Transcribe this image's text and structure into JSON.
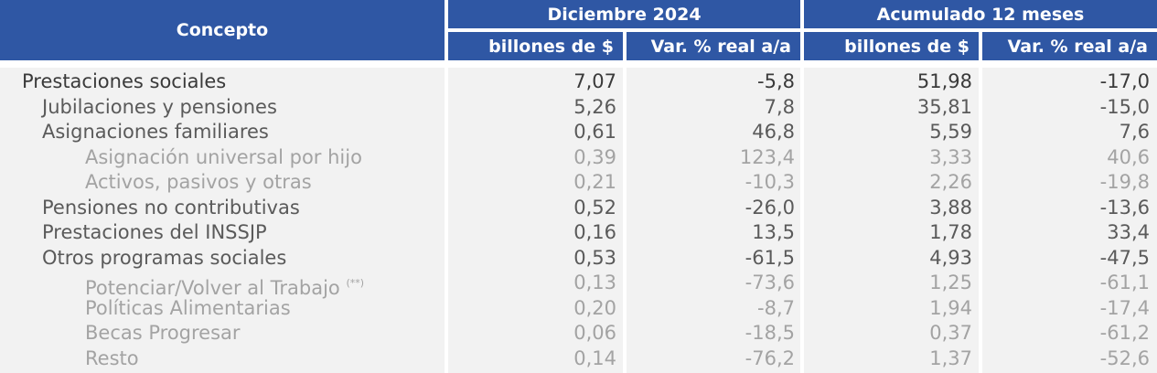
{
  "header": {
    "concepto": "Concepto",
    "group1": "Diciembre 2024",
    "group2": "Acumulado 12 meses",
    "sub1": "billones de $",
    "sub2": "Var. % real a/a",
    "sub3": "billones de $",
    "sub4": "Var. % real a/a"
  },
  "rows": [
    {
      "label": "Prestaciones sociales",
      "note": "",
      "v1": "7,07",
      "v2": "-5,8",
      "v3": "51,98",
      "v4": "-17,0"
    },
    {
      "label": "Jubilaciones y pensiones",
      "note": "",
      "v1": "5,26",
      "v2": "7,8",
      "v3": "35,81",
      "v4": "-15,0"
    },
    {
      "label": "Asignaciones familiares",
      "note": "",
      "v1": "0,61",
      "v2": "46,8",
      "v3": "5,59",
      "v4": "7,6"
    },
    {
      "label": "Asignación universal por hijo",
      "note": "",
      "v1": "0,39",
      "v2": "123,4",
      "v3": "3,33",
      "v4": "40,6"
    },
    {
      "label": "Activos, pasivos y otras",
      "note": "",
      "v1": "0,21",
      "v2": "-10,3",
      "v3": "2,26",
      "v4": "-19,8"
    },
    {
      "label": "Pensiones no contributivas",
      "note": "",
      "v1": "0,52",
      "v2": "-26,0",
      "v3": "3,88",
      "v4": "-13,6"
    },
    {
      "label": "Prestaciones del INSSJP",
      "note": "",
      "v1": "0,16",
      "v2": "13,5",
      "v3": "1,78",
      "v4": "33,4"
    },
    {
      "label": "Otros programas sociales",
      "note": "",
      "v1": "0,53",
      "v2": "-61,5",
      "v3": "4,93",
      "v4": "-47,5"
    },
    {
      "label": "Potenciar/Volver al Trabajo",
      "note": "(**)",
      "v1": "0,13",
      "v2": "-73,6",
      "v3": "1,25",
      "v4": "-61,1"
    },
    {
      "label": "Políticas Alimentarias",
      "note": "",
      "v1": "0,20",
      "v2": "-8,7",
      "v3": "1,94",
      "v4": "-17,4"
    },
    {
      "label": "Becas Progresar",
      "note": "",
      "v1": "0,06",
      "v2": "-18,5",
      "v3": "0,37",
      "v4": "-61,2"
    },
    {
      "label": "Resto",
      "note": "",
      "v1": "0,14",
      "v2": "-76,2",
      "v3": "1,37",
      "v4": "-52,6"
    }
  ]
}
